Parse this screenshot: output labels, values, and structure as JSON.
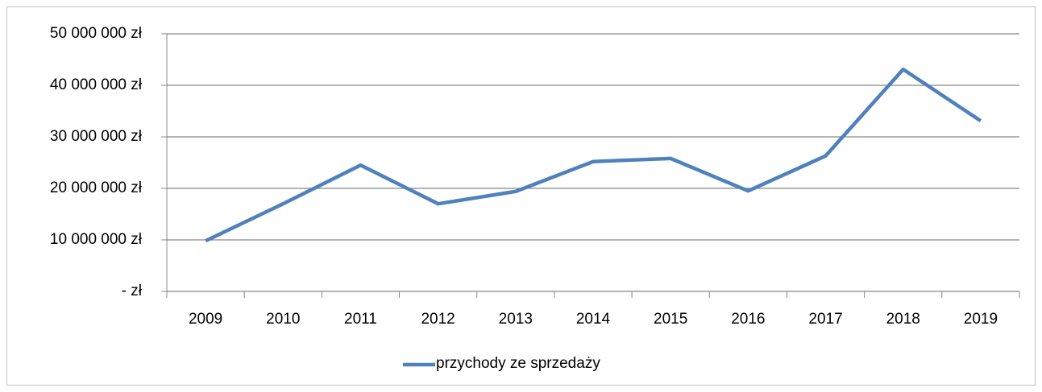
{
  "chart_data": {
    "type": "line",
    "categories": [
      "2009",
      "2010",
      "2011",
      "2012",
      "2013",
      "2014",
      "2015",
      "2016",
      "2017",
      "2018",
      "2019"
    ],
    "series": [
      {
        "name": "przychody ze sprzedaży",
        "color": "#4f81bd",
        "values": [
          9800000,
          17000000,
          24500000,
          17000000,
          19400000,
          25200000,
          25800000,
          19500000,
          26300000,
          43100000,
          33100000
        ]
      }
    ],
    "ylim": [
      0,
      50000000
    ],
    "yticks": [
      {
        "value": 0,
        "label": "- zł"
      },
      {
        "value": 10000000,
        "label": "10 000 000 zł"
      },
      {
        "value": 20000000,
        "label": "20 000 000 zł"
      },
      {
        "value": 30000000,
        "label": "30 000 000 zł"
      },
      {
        "value": 40000000,
        "label": "40 000 000 zł"
      },
      {
        "value": 50000000,
        "label": "50 000 000 zł"
      }
    ],
    "grid": true,
    "legend": "bottom"
  }
}
